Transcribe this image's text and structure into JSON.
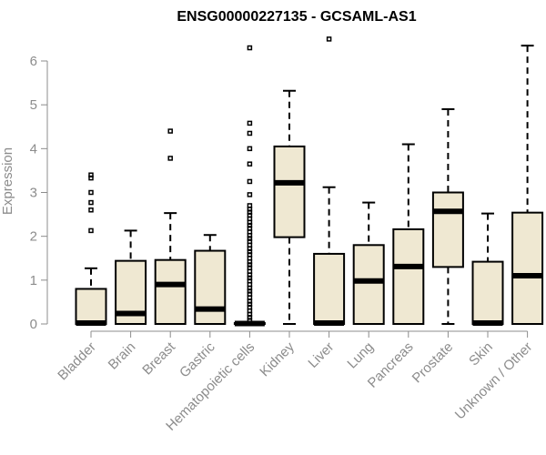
{
  "chart_data": {
    "type": "boxplot",
    "title": "ENSG00000227135 - GCSAML-AS1",
    "xlabel": "",
    "ylabel": "Expression",
    "ylim": [
      0,
      6.5
    ],
    "yticks": [
      0,
      1,
      2,
      3,
      4,
      5,
      6
    ],
    "grid": false,
    "legend": "none",
    "colors": {
      "box_fill": "#efe8d2",
      "stroke": "#000000",
      "axis": "#8c8c8c"
    },
    "categories": [
      "Bladder",
      "Brain",
      "Breast",
      "Gastric",
      "Hematopoietic cells",
      "Kidney",
      "Liver",
      "Lung",
      "Pancreas",
      "Prostate",
      "Skin",
      "Unknown / Other"
    ],
    "boxes": [
      {
        "category": "Bladder",
        "whisker_low": 0,
        "q1": 0,
        "median": 0.02,
        "q3": 0.8,
        "whisker_high": 1.27,
        "outliers": [
          2.13,
          2.6,
          2.77,
          3.0,
          3.33,
          3.4
        ]
      },
      {
        "category": "Brain",
        "whisker_low": 0,
        "q1": 0,
        "median": 0.24,
        "q3": 1.44,
        "whisker_high": 2.13,
        "outliers": []
      },
      {
        "category": "Breast",
        "whisker_low": 0,
        "q1": 0,
        "median": 0.9,
        "q3": 1.46,
        "whisker_high": 2.53,
        "outliers": [
          3.78,
          4.4
        ]
      },
      {
        "category": "Gastric",
        "whisker_low": 0,
        "q1": 0,
        "median": 0.34,
        "q3": 1.67,
        "whisker_high": 2.03,
        "outliers": []
      },
      {
        "category": "Hematopoietic cells",
        "whisker_low": 0,
        "q1": 0,
        "median": 0.01,
        "q3": 0.02,
        "whisker_high": 0.03,
        "outliers": [
          0.08,
          0.15,
          0.22,
          0.3,
          0.38,
          0.45,
          0.52,
          0.6,
          0.68,
          0.75,
          0.82,
          0.9,
          0.98,
          1.05,
          1.12,
          1.2,
          1.28,
          1.35,
          1.42,
          1.5,
          1.58,
          1.65,
          1.72,
          1.8,
          1.88,
          1.95,
          2.02,
          2.1,
          2.18,
          2.25,
          2.32,
          2.4,
          2.48,
          2.55,
          2.62,
          2.7,
          2.95,
          3.25,
          3.65,
          4.0,
          4.35,
          4.58,
          6.3
        ]
      },
      {
        "category": "Kidney",
        "whisker_low": 0,
        "q1": 1.98,
        "median": 3.22,
        "q3": 4.05,
        "whisker_high": 5.32,
        "outliers": []
      },
      {
        "category": "Liver",
        "whisker_low": 0,
        "q1": 0,
        "median": 0.02,
        "q3": 1.6,
        "whisker_high": 3.12,
        "outliers": [
          6.5
        ]
      },
      {
        "category": "Lung",
        "whisker_low": 0,
        "q1": 0,
        "median": 0.98,
        "q3": 1.8,
        "whisker_high": 2.77,
        "outliers": []
      },
      {
        "category": "Pancreas",
        "whisker_low": 0,
        "q1": 0,
        "median": 1.31,
        "q3": 2.16,
        "whisker_high": 4.1,
        "outliers": []
      },
      {
        "category": "Prostate",
        "whisker_low": 0,
        "q1": 1.3,
        "median": 2.57,
        "q3": 3.0,
        "whisker_high": 4.9,
        "outliers": []
      },
      {
        "category": "Skin",
        "whisker_low": 0,
        "q1": 0,
        "median": 0.02,
        "q3": 1.42,
        "whisker_high": 2.52,
        "outliers": []
      },
      {
        "category": "Unknown / Other",
        "whisker_low": 0,
        "q1": 0,
        "median": 1.1,
        "q3": 2.54,
        "whisker_high": 6.35,
        "outliers": []
      }
    ]
  }
}
